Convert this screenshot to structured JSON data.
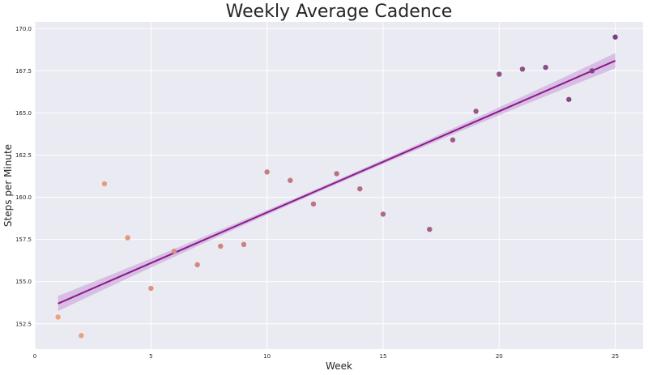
{
  "chart_data": {
    "type": "scatter",
    "title": "Weekly Average Cadence",
    "xlabel": "Week",
    "ylabel": "Steps per Minute",
    "xlim": [
      0,
      26.2
    ],
    "ylim": [
      151.0,
      170.4
    ],
    "xticks": [
      0,
      5,
      10,
      15,
      20,
      25
    ],
    "yticks": [
      152.5,
      155.0,
      157.5,
      160.0,
      162.5,
      165.0,
      167.5,
      170.0
    ],
    "xtick_labels": [
      "0",
      "5",
      "10",
      "15",
      "20",
      "25"
    ],
    "ytick_labels": [
      "152.5",
      "155.0",
      "157.5",
      "160.0",
      "162.5",
      "165.0",
      "167.5",
      "170.0"
    ],
    "grid": true,
    "background": "#eaeaf2",
    "points": [
      {
        "x": 1,
        "y": 152.9
      },
      {
        "x": 2,
        "y": 151.8
      },
      {
        "x": 3,
        "y": 160.8
      },
      {
        "x": 4,
        "y": 157.6
      },
      {
        "x": 5,
        "y": 154.6
      },
      {
        "x": 6,
        "y": 156.8
      },
      {
        "x": 7,
        "y": 156.0
      },
      {
        "x": 8,
        "y": 157.1
      },
      {
        "x": 9,
        "y": 157.2
      },
      {
        "x": 10,
        "y": 161.5
      },
      {
        "x": 11,
        "y": 161.0
      },
      {
        "x": 12,
        "y": 159.6
      },
      {
        "x": 13,
        "y": 161.4
      },
      {
        "x": 14,
        "y": 160.5
      },
      {
        "x": 15,
        "y": 159.0
      },
      {
        "x": 17,
        "y": 158.1
      },
      {
        "x": 18,
        "y": 163.4
      },
      {
        "x": 19,
        "y": 165.1
      },
      {
        "x": 20,
        "y": 167.3
      },
      {
        "x": 21,
        "y": 167.6
      },
      {
        "x": 22,
        "y": 167.7
      },
      {
        "x": 23,
        "y": 165.8
      },
      {
        "x": 24,
        "y": 167.5
      },
      {
        "x": 25,
        "y": 169.5
      }
    ],
    "point_color_start": "#f2a27a",
    "point_color_end": "#7b3f8c",
    "regression": {
      "x": [
        1,
        25
      ],
      "y": [
        153.7,
        168.1
      ],
      "ci_half_width_ends": 0.45,
      "ci_half_width_mid": 0.12,
      "line_color": "#8b1a8b",
      "band_color": "#c9a0d9"
    }
  }
}
